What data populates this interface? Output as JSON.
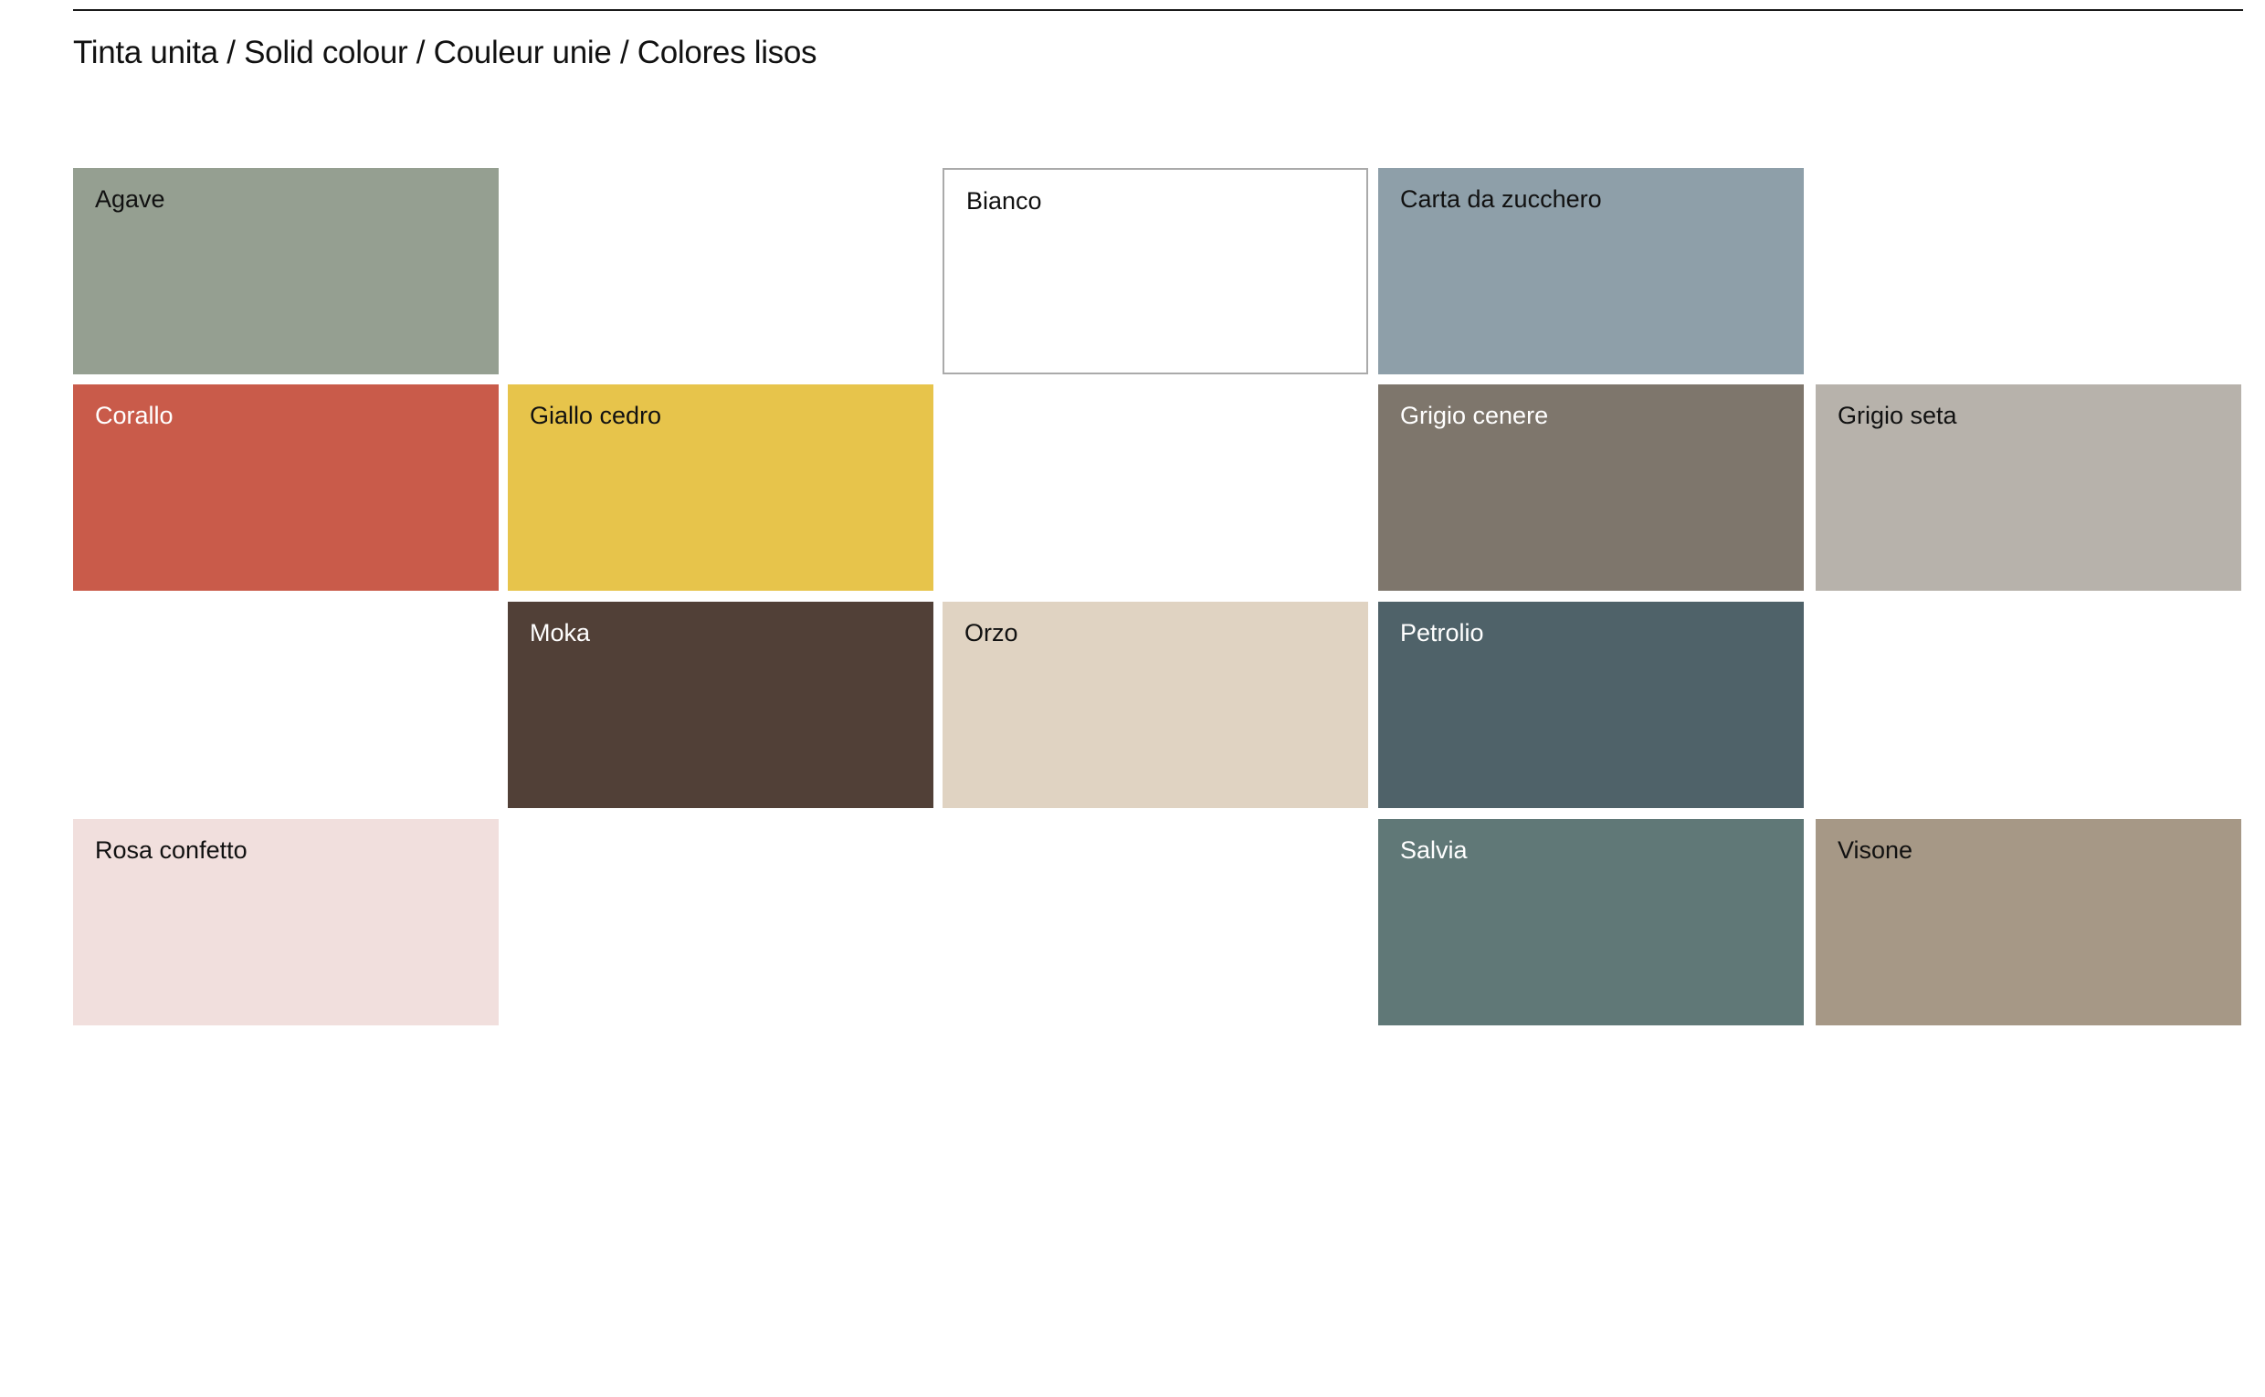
{
  "title": "Tinta unita / Solid colour / Couleur unie / Colores lisos",
  "swatches": [
    {
      "name": "Agave",
      "color": "#959f91",
      "text_color": "#111111"
    },
    {
      "name": "Bianco",
      "color": "#ffffff",
      "text_color": "#111111",
      "border": "#aaaaaa"
    },
    {
      "name": "Carta da zucchero",
      "color": "#8e9fa9",
      "text_color": "#111111"
    },
    {
      "name": "Corallo",
      "color": "#c95b4a",
      "text_color": "#ffffff"
    },
    {
      "name": "Giallo cedro",
      "color": "#e7c44b",
      "text_color": "#111111"
    },
    {
      "name": "Grigio cenere",
      "color": "#7e766c",
      "text_color": "#ffffff"
    },
    {
      "name": "Grigio seta",
      "color": "#b7b2ab",
      "text_color": "#111111"
    },
    {
      "name": "Moka",
      "color": "#514037",
      "text_color": "#ffffff"
    },
    {
      "name": "Orzo",
      "color": "#e0d3c2",
      "text_color": "#111111"
    },
    {
      "name": "Petrolio",
      "color": "#4f6269",
      "text_color": "#ffffff"
    },
    {
      "name": "Rosa confetto",
      "color": "#f1dfdd",
      "text_color": "#111111"
    },
    {
      "name": "Salvia",
      "color": "#607877",
      "text_color": "#ffffff"
    },
    {
      "name": "Visone",
      "color": "#a69886",
      "text_color": "#111111"
    }
  ]
}
